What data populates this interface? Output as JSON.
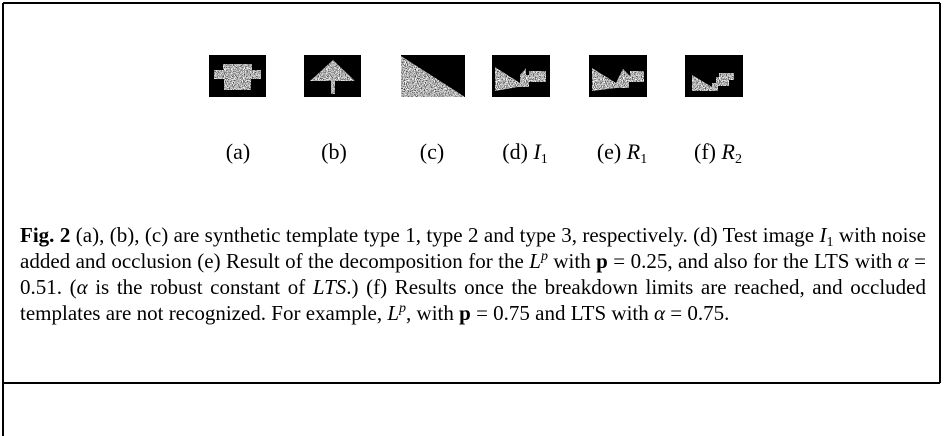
{
  "figures": [
    {
      "label": "(a)"
    },
    {
      "label": "(b)"
    },
    {
      "label": "(c)"
    },
    {
      "label": "(d)",
      "symbol": "I",
      "sub": "1"
    },
    {
      "label": "(e)",
      "symbol": "R",
      "sub": "1"
    },
    {
      "label": "(f)",
      "symbol": "R",
      "sub": "2"
    }
  ],
  "caption": {
    "label": "Fig. 2",
    "parts": [
      "(a), (b), (c) are synthetic template type 1, type 2 and type 3, respectively. (d) Test image ",
      "I",
      "1",
      " with noise added and occlusion (e) Result of the decompo­sition for the ",
      "L",
      "p",
      " with ",
      "p",
      " = 0.25, and also for the LTS with ",
      "α",
      " = 0.51. (",
      "α",
      " is the robust constant of ",
      "LTS",
      ".) (f) Results once the breakdown limits are reached, and occluded templates are not recognized. For example, ",
      "L",
      "p",
      ", with ",
      "p",
      " = 0.75 and LTS with ",
      "α",
      " = 0.75."
    ]
  }
}
